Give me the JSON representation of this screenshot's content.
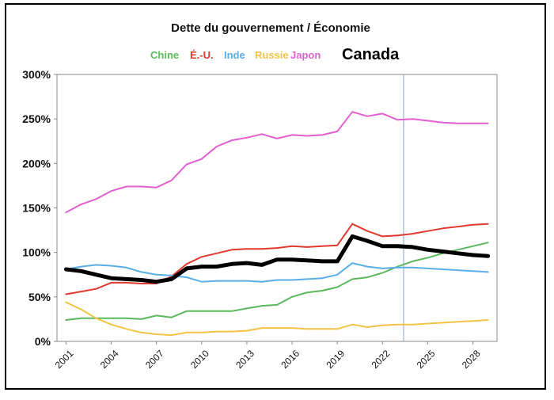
{
  "chart_data": {
    "type": "line",
    "title": "Dette du gouvernement / Économie",
    "x": [
      2001,
      2002,
      2003,
      2004,
      2005,
      2006,
      2007,
      2008,
      2009,
      2010,
      2011,
      2012,
      2013,
      2014,
      2015,
      2016,
      2017,
      2018,
      2019,
      2020,
      2021,
      2022,
      2023,
      2024,
      2025,
      2026,
      2027,
      2028,
      2029
    ],
    "x_tick_labels": [
      "2001",
      "2004",
      "2007",
      "2010",
      "2013",
      "2016",
      "2019",
      "2022",
      "2025",
      "2028"
    ],
    "y_tick_labels": [
      "0%",
      "50%",
      "100%",
      "150%",
      "200%",
      "250%",
      "300%"
    ],
    "ylim": [
      0,
      300
    ],
    "y_unit": "%",
    "vertical_marker_x": 2023.4,
    "grid": false,
    "legend_position": "top",
    "series": [
      {
        "name": "Chine",
        "color": "#5cb85c",
        "width": 2,
        "values": [
          24,
          26,
          26,
          26,
          26,
          25,
          29,
          27,
          34,
          34,
          34,
          34,
          37,
          40,
          41,
          50,
          55,
          57,
          61,
          70,
          72,
          77,
          84,
          90,
          94,
          99,
          103,
          107,
          111
        ]
      },
      {
        "name": "É.-U.",
        "color": "#e03a2e",
        "width": 2,
        "values": [
          53,
          56,
          59,
          66,
          66,
          65,
          65,
          73,
          87,
          95,
          99,
          103,
          104,
          104,
          105,
          107,
          106,
          107,
          108,
          132,
          124,
          118,
          119,
          121,
          124,
          127,
          129,
          131,
          132
        ]
      },
      {
        "name": "Inde",
        "color": "#5aaee6",
        "width": 2,
        "values": [
          81,
          84,
          86,
          85,
          83,
          78,
          75,
          74,
          72,
          67,
          68,
          68,
          68,
          67,
          69,
          69,
          70,
          71,
          75,
          88,
          84,
          82,
          83,
          83,
          82,
          81,
          80,
          79,
          78
        ]
      },
      {
        "name": "Russie",
        "color": "#f2c444",
        "width": 2,
        "values": [
          44,
          36,
          26,
          19,
          14,
          10,
          8,
          7,
          10,
          10,
          11,
          11,
          12,
          15,
          15,
          15,
          14,
          14,
          14,
          19,
          16,
          18,
          19,
          19,
          20,
          21,
          22,
          23,
          24
        ]
      },
      {
        "name": "Japon",
        "color": "#e35fcf",
        "width": 2,
        "values": [
          145,
          154,
          160,
          169,
          174,
          174,
          173,
          181,
          199,
          205,
          219,
          226,
          229,
          233,
          228,
          232,
          231,
          232,
          236,
          258,
          253,
          256,
          249,
          250,
          248,
          246,
          245,
          245,
          245
        ]
      },
      {
        "name": "Canada",
        "color": "#000000",
        "width": 5,
        "values": [
          81,
          79,
          75,
          71,
          70,
          69,
          67,
          70,
          82,
          84,
          84,
          87,
          88,
          86,
          92,
          92,
          91,
          90,
          90,
          118,
          113,
          107,
          107,
          106,
          103,
          101,
          99,
          97,
          96
        ]
      }
    ]
  }
}
